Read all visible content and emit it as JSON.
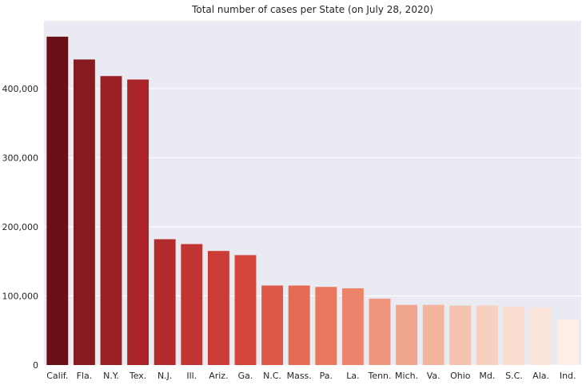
{
  "chart_data": {
    "type": "bar",
    "title": "Total number of cases per State (on July 28, 2020)",
    "xlabel": "",
    "ylabel": "",
    "categories": [
      "Calif.",
      "Fla.",
      "N.Y.",
      "Tex.",
      "N.J.",
      "Ill.",
      "Ariz.",
      "Ga.",
      "N.C.",
      "Mass.",
      "Pa.",
      "La.",
      "Tenn.",
      "Mich.",
      "Va.",
      "Ohio",
      "Md.",
      "S.C.",
      "Ala.",
      "Ind."
    ],
    "values": [
      475000,
      442000,
      418000,
      413000,
      182000,
      175000,
      165000,
      159000,
      115000,
      115000,
      113000,
      111000,
      96000,
      87000,
      87000,
      86000,
      86000,
      84000,
      83000,
      66000
    ],
    "colors": [
      "#6b0f18",
      "#861a1f",
      "#9b2023",
      "#a92327",
      "#b42b2e",
      "#c03433",
      "#cb3c37",
      "#d5453c",
      "#de5848",
      "#e56a53",
      "#e9785e",
      "#ec846b",
      "#ef957e",
      "#f0a68e",
      "#f3b49e",
      "#f5c2af",
      "#f8d0c0",
      "#fadccf",
      "#fce6dc",
      "#fdeee8"
    ],
    "yticks": [
      0,
      100000,
      200000,
      300000,
      400000
    ],
    "ytick_labels": [
      "0",
      "100,000",
      "200,000",
      "300,000",
      "400,000"
    ],
    "ylim": [
      0,
      498000
    ],
    "grid": true,
    "background": "#eaeaf2"
  }
}
